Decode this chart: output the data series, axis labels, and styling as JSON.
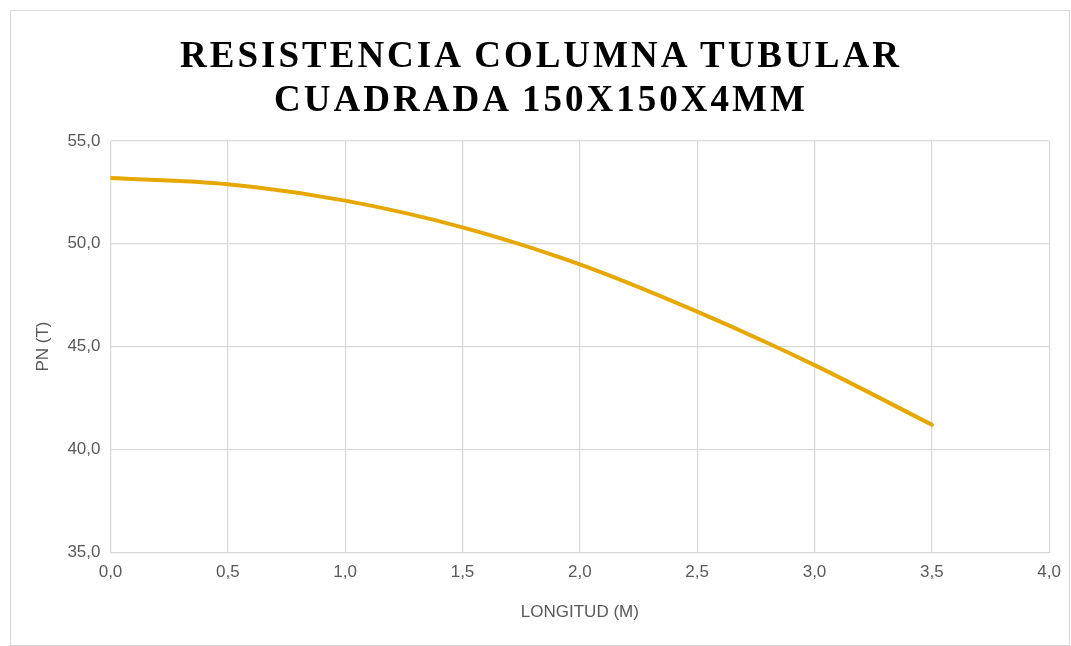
{
  "chart_data": {
    "type": "line",
    "title": "RESISTENCIA COLUMNA TUBULAR CUADRADA 150X150X4MM",
    "xlabel": "LONGITUD (M)",
    "ylabel": "PN (T)",
    "x": [
      0,
      0.5,
      1.0,
      1.5,
      2.0,
      2.5,
      3.0,
      3.5
    ],
    "series": [
      {
        "color": "#e6a800",
        "values": [
          53.2,
          52.9,
          52.1,
          50.8,
          49.0,
          46.7,
          44.1,
          41.2
        ]
      }
    ],
    "xlim": [
      0,
      4
    ],
    "xticks": [
      {
        "value": 0,
        "label": "0,0"
      },
      {
        "value": 0.5,
        "label": "0,5"
      },
      {
        "value": 1,
        "label": "1,0"
      },
      {
        "value": 1.5,
        "label": "1,5"
      },
      {
        "value": 2,
        "label": "2,0"
      },
      {
        "value": 2.5,
        "label": "2,5"
      },
      {
        "value": 3,
        "label": "3,0"
      },
      {
        "value": 3.5,
        "label": "3,5"
      },
      {
        "value": 4,
        "label": "4,0"
      }
    ],
    "ylim": [
      35,
      55
    ],
    "yticks": [
      {
        "value": 35,
        "label": "35,0"
      },
      {
        "value": 40,
        "label": "40,0"
      },
      {
        "value": 45,
        "label": "45,0"
      },
      {
        "value": 50,
        "label": "50,0"
      },
      {
        "value": 55,
        "label": "55,0"
      }
    ],
    "grid": true,
    "legend": false,
    "marker": "none",
    "line_style": "solid"
  }
}
